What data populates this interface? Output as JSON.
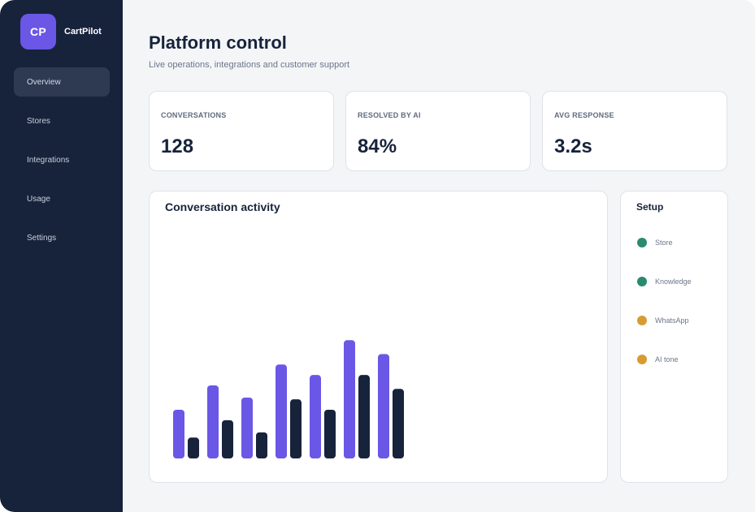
{
  "brand": {
    "logo_text": "CP",
    "name": "CartPilot"
  },
  "nav": {
    "items": [
      {
        "label": "Overview",
        "active": true
      },
      {
        "label": "Stores",
        "active": false
      },
      {
        "label": "Integrations",
        "active": false
      },
      {
        "label": "Usage",
        "active": false
      },
      {
        "label": "Settings",
        "active": false
      }
    ]
  },
  "header": {
    "title": "Platform control",
    "subtitle": "Live operations, integrations and customer support"
  },
  "kpis": [
    {
      "label": "CONVERSATIONS",
      "value": "128"
    },
    {
      "label": "RESOLVED BY AI",
      "value": "84%"
    },
    {
      "label": "AVG RESPONSE",
      "value": "3.2s"
    }
  ],
  "activity": {
    "title": "Conversation activity",
    "colors": {
      "primary": "#6a57e6",
      "secondary": "#17233b"
    }
  },
  "chart_data": {
    "type": "bar",
    "categories": [
      "",
      "",
      "",
      "",
      "",
      "",
      ""
    ],
    "series": [
      {
        "values": [
          28,
          42,
          35,
          54,
          48,
          68,
          60
        ]
      },
      {
        "values": [
          12,
          22,
          15,
          34,
          28,
          48,
          40
        ]
      }
    ],
    "ylim": [
      0,
      140
    ],
    "grid": false,
    "legend": "none"
  },
  "setup": {
    "title": "Setup",
    "items": [
      {
        "label": "Store",
        "status_color": "#2a8a6e"
      },
      {
        "label": "Knowledge",
        "status_color": "#2a8a6e"
      },
      {
        "label": "WhatsApp",
        "status_color": "#d89b32"
      },
      {
        "label": "AI tone",
        "status_color": "#d89b32"
      }
    ]
  }
}
